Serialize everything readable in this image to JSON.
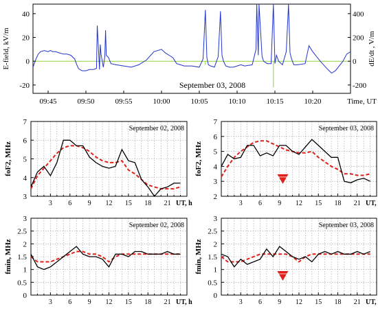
{
  "colors": {
    "axis": "#000000",
    "efield": "#2233cc",
    "observed": "#000000",
    "model": "#e0201a",
    "zero_line": "#8fd13f",
    "marker": "#e0201a",
    "grid": "#9a9a9a"
  },
  "chart_data": [
    {
      "type": "line",
      "title": "September 03, 2008",
      "xlabel": "Time, UT",
      "ylabel": "E-field, kV/m",
      "ylabel_right": "dE/dt , V/m",
      "x_ticks": [
        "09:45",
        "09:50",
        "09:55",
        "10:00",
        "10:05",
        "10:10",
        "10:15",
        "10:20"
      ],
      "x_tick_minutes": [
        0,
        5,
        10,
        15,
        20,
        25,
        30,
        35
      ],
      "xlim_minutes": [
        -2,
        40
      ],
      "y_ticks": [
        -20,
        0,
        20,
        40
      ],
      "ylim": [
        -27,
        48
      ],
      "y_right_ticks": [
        -200,
        0,
        200,
        400
      ],
      "ylim_right": [
        -270,
        480
      ],
      "grid": false,
      "series": [
        {
          "x": [
            -2,
            -1.6,
            -1.3,
            -1,
            -0.5,
            0,
            0.3,
            0.6,
            1,
            1.5,
            2,
            2.5,
            3,
            3.5,
            3.8,
            4,
            4.2,
            4.5,
            5,
            5.5,
            6,
            6.4,
            6.5,
            6.8,
            6.9,
            7,
            7.3,
            7.5,
            7.6,
            7.7,
            8,
            8.3,
            9,
            10,
            11,
            12,
            13,
            14,
            15,
            15.5,
            16,
            16.5,
            17,
            17.5,
            18,
            19,
            20,
            20.5,
            20.8,
            21,
            21.2,
            21.5,
            22,
            22.5,
            22.8,
            23,
            23.2,
            23.5,
            24,
            24.5,
            25,
            25.5,
            26,
            27,
            27.5,
            27.6,
            27.8,
            27.9,
            28.3,
            28.5,
            29,
            29.5,
            29.8,
            30,
            30.2,
            30.5,
            31,
            31.5,
            31.8,
            32,
            32.2,
            32.5,
            33,
            34,
            34.5,
            35,
            36,
            37,
            37.5,
            38,
            39,
            39.5,
            40
          ],
          "y": [
            -5,
            2,
            6,
            8,
            9,
            8,
            9,
            8,
            8,
            7,
            6,
            6,
            5,
            2,
            -3,
            -6,
            -7,
            -8,
            -8,
            -7,
            -7,
            -6,
            30,
            -7,
            14,
            6,
            -5,
            4,
            26,
            5,
            3,
            -2,
            -3,
            -4,
            -5,
            -3,
            1,
            8,
            10,
            7,
            5,
            3,
            -2,
            -3,
            -4,
            -4,
            -5,
            2,
            43,
            3,
            -3,
            -4,
            -5,
            4,
            42,
            5,
            0,
            -4,
            -5,
            -5,
            -4,
            -3,
            -4,
            -3,
            10,
            50,
            5,
            50,
            4,
            0,
            -2,
            -2,
            50,
            -2,
            5,
            0,
            -3,
            8,
            50,
            7,
            2,
            -3,
            -3,
            -2,
            13,
            8,
            0,
            -7,
            -10,
            -8,
            0,
            6,
            8
          ],
          "approximate": true
        }
      ]
    },
    {
      "type": "line",
      "title": "September 02, 2008",
      "xlabel": "UT, h",
      "ylabel": "foF2, MHz",
      "x_ticks": [
        "3",
        "6",
        "9",
        "12",
        "15",
        "18",
        "21"
      ],
      "xlim": [
        0,
        24
      ],
      "y_ticks": [
        "3",
        "4",
        "5",
        "6",
        "7"
      ],
      "ylim": [
        3,
        7
      ],
      "grid": true,
      "series": [
        {
          "x": [
            0,
            1,
            2,
            3,
            4,
            5,
            6,
            7,
            8,
            9,
            10,
            11,
            12,
            13,
            14,
            15,
            16,
            17,
            18,
            19,
            20,
            21,
            22,
            23
          ],
          "y": [
            3.5,
            4.3,
            4.6,
            4.1,
            4.8,
            6.0,
            6.0,
            5.7,
            5.7,
            5.1,
            4.8,
            4.6,
            4.5,
            4.6,
            5.5,
            4.9,
            4.8,
            3.9,
            3.5,
            3.0,
            3.4,
            3.5,
            3.7,
            3.7
          ]
        },
        {
          "x": [
            0,
            1,
            2,
            3,
            4,
            5,
            6,
            7,
            8,
            9,
            10,
            11,
            12,
            13,
            14,
            15,
            16,
            17,
            18,
            19,
            20,
            21,
            22,
            23
          ],
          "y": [
            3.4,
            4.1,
            4.5,
            4.9,
            5.3,
            5.6,
            5.7,
            5.7,
            5.6,
            5.4,
            5.1,
            4.9,
            4.8,
            4.8,
            4.9,
            4.4,
            4.2,
            3.9,
            3.6,
            3.5,
            3.4,
            3.4,
            3.4,
            3.5
          ]
        }
      ]
    },
    {
      "type": "line",
      "title": "September 03, 2008",
      "xlabel": "UT, h",
      "ylabel": "foF2, MHz",
      "x_ticks": [
        "3",
        "6",
        "9",
        "12",
        "15",
        "18",
        "21"
      ],
      "xlim": [
        0,
        24
      ],
      "y_ticks": [
        "2",
        "3",
        "4",
        "5",
        "6",
        "7"
      ],
      "ylim": [
        2,
        7
      ],
      "grid": true,
      "marker_x": 9.5,
      "marker_y": 3.15,
      "series": [
        {
          "x": [
            0,
            1,
            2,
            3,
            4,
            5,
            6,
            7,
            8,
            9,
            10,
            11,
            12,
            13,
            14,
            15,
            16,
            17,
            18,
            19,
            20,
            21,
            22,
            23
          ],
          "y": [
            4.0,
            4.8,
            4.5,
            4.6,
            5.4,
            5.4,
            4.7,
            4.9,
            4.7,
            5.4,
            5.4,
            5.0,
            4.8,
            5.3,
            5.8,
            5.4,
            5.0,
            4.6,
            4.6,
            3.0,
            2.9,
            3.1,
            3.2,
            3.0
          ]
        },
        {
          "x": [
            0,
            1,
            2,
            3,
            4,
            5,
            6,
            7,
            8,
            9,
            10,
            11,
            12,
            13,
            14,
            15,
            16,
            17,
            18,
            19,
            20,
            21,
            22,
            23
          ],
          "y": [
            3.3,
            4.0,
            4.6,
            5.0,
            5.3,
            5.6,
            5.7,
            5.7,
            5.5,
            5.3,
            5.1,
            5.0,
            4.9,
            4.9,
            5.0,
            4.6,
            4.3,
            4.0,
            3.8,
            3.5,
            3.5,
            3.4,
            3.4,
            3.5
          ]
        }
      ]
    },
    {
      "type": "line",
      "title": "September 02, 2008",
      "xlabel": "UT, h",
      "ylabel": "fmin, MHz",
      "x_ticks": [
        "3",
        "6",
        "9",
        "12",
        "15",
        "18",
        "21"
      ],
      "xlim": [
        0,
        24
      ],
      "y_ticks": [
        "0",
        "0.5",
        "1",
        "1.5",
        "2",
        "2.5",
        "3"
      ],
      "ylim": [
        0,
        3
      ],
      "grid": true,
      "series": [
        {
          "x": [
            0,
            1,
            2,
            3,
            4,
            5,
            6,
            7,
            8,
            9,
            10,
            11,
            12,
            13,
            14,
            15,
            16,
            17,
            18,
            19,
            20,
            21,
            22,
            23
          ],
          "y": [
            1.6,
            1.1,
            1.0,
            1.1,
            1.3,
            1.5,
            1.7,
            1.9,
            1.6,
            1.5,
            1.5,
            1.4,
            1.1,
            1.6,
            1.6,
            1.5,
            1.7,
            1.7,
            1.6,
            1.6,
            1.6,
            1.7,
            1.6,
            1.6
          ]
        },
        {
          "x": [
            0,
            1,
            2,
            3,
            4,
            5,
            6,
            7,
            8,
            9,
            10,
            11,
            12,
            13,
            14,
            15,
            16,
            17,
            18,
            19,
            20,
            21,
            22,
            23
          ],
          "y": [
            1.5,
            1.3,
            1.3,
            1.3,
            1.4,
            1.5,
            1.6,
            1.7,
            1.7,
            1.6,
            1.6,
            1.5,
            1.3,
            1.5,
            1.6,
            1.6,
            1.6,
            1.6,
            1.6,
            1.6,
            1.6,
            1.6,
            1.6,
            1.6
          ]
        }
      ]
    },
    {
      "type": "line",
      "title": "September 03, 2008",
      "xlabel": "UT, h",
      "ylabel": "fmin, MHz",
      "x_ticks": [
        "3",
        "6",
        "9",
        "12",
        "15",
        "18",
        "21"
      ],
      "xlim": [
        0,
        24
      ],
      "y_ticks": [
        "0",
        "0.5",
        "1",
        "1.5",
        "2",
        "2.5",
        "3"
      ],
      "ylim": [
        0,
        3
      ],
      "grid": true,
      "marker_x": 9.5,
      "marker_y": 0.75,
      "series": [
        {
          "x": [
            0,
            1,
            2,
            3,
            4,
            5,
            6,
            7,
            8,
            9,
            10,
            11,
            12,
            13,
            14,
            15,
            16,
            17,
            18,
            19,
            20,
            21,
            22,
            23
          ],
          "y": [
            1.6,
            1.5,
            1.1,
            1.4,
            1.2,
            1.3,
            1.4,
            1.8,
            1.5,
            1.9,
            1.7,
            1.5,
            1.4,
            1.5,
            1.3,
            1.6,
            1.7,
            1.6,
            1.7,
            1.6,
            1.6,
            1.7,
            1.6,
            1.7
          ]
        },
        {
          "x": [
            0,
            1,
            2,
            3,
            4,
            5,
            6,
            7,
            8,
            9,
            10,
            11,
            12,
            13,
            14,
            15,
            16,
            17,
            18,
            19,
            20,
            21,
            22,
            23
          ],
          "y": [
            1.5,
            1.3,
            1.3,
            1.3,
            1.4,
            1.5,
            1.6,
            1.6,
            1.6,
            1.6,
            1.6,
            1.5,
            1.3,
            1.5,
            1.6,
            1.6,
            1.6,
            1.6,
            1.6,
            1.6,
            1.6,
            1.6,
            1.6,
            1.6
          ]
        }
      ]
    }
  ]
}
